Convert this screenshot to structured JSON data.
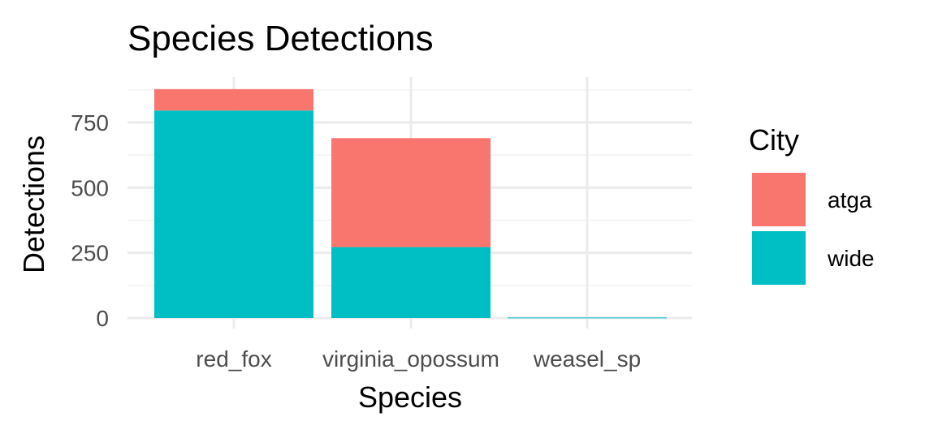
{
  "chart_data": {
    "type": "bar",
    "stacked": true,
    "title": "Species Detections",
    "xlabel": "Species",
    "ylabel": "Detections",
    "categories": [
      "red_fox",
      "virginia_opossum",
      "weasel_sp"
    ],
    "series": [
      {
        "name": "atga",
        "color": "#F8766D",
        "values": [
          82,
          418,
          0
        ]
      },
      {
        "name": "wide",
        "color": "#00BFC4",
        "values": [
          796,
          272,
          2
        ]
      }
    ],
    "y_ticks": [
      0,
      250,
      500,
      750
    ],
    "y_tick_labels": [
      "0",
      "250",
      "500",
      "750"
    ],
    "ylim": [
      0,
      900
    ],
    "grid": true,
    "legend": {
      "title": "City",
      "position": "right",
      "entries": [
        "atga",
        "wide"
      ]
    }
  }
}
